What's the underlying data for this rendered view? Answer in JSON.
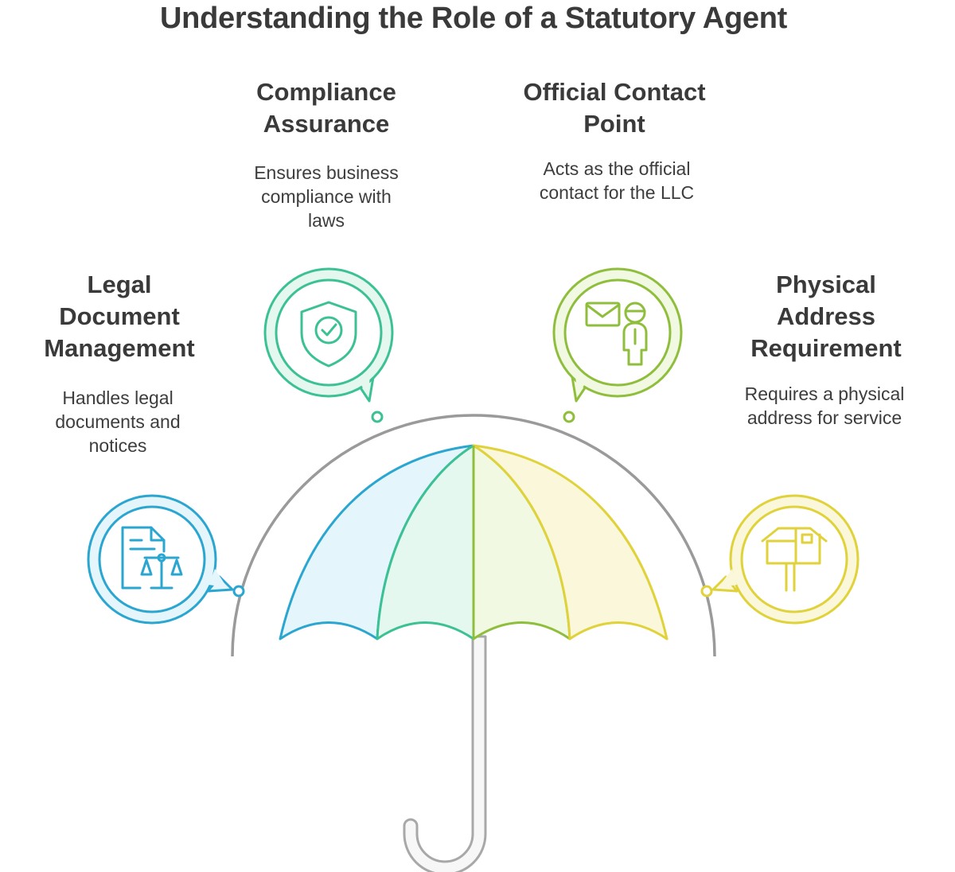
{
  "title": "Understanding the Role of a Statutory Agent",
  "features": [
    {
      "id": "legal-document-management",
      "title_lines": [
        "Legal",
        "Document",
        "Management"
      ],
      "description_lines": [
        "Handles legal",
        "documents and",
        "notices"
      ],
      "icon": "legal-document-scales-icon",
      "color": "#2aa6d0"
    },
    {
      "id": "compliance-assurance",
      "title_lines": [
        "Compliance",
        "Assurance"
      ],
      "description_lines": [
        "Ensures business",
        "compliance with",
        "laws"
      ],
      "icon": "shield-check-icon",
      "color": "#3cc194"
    },
    {
      "id": "official-contact-point",
      "title_lines": [
        "Official Contact",
        "Point"
      ],
      "description_lines": [
        "Acts as the official",
        "contact for the LLC"
      ],
      "icon": "mail-person-icon",
      "color": "#8fbe3c"
    },
    {
      "id": "physical-address-requirement",
      "title_lines": [
        "Physical",
        "Address",
        "Requirement"
      ],
      "description_lines": [
        "Requires a physical",
        "address for service"
      ],
      "icon": "mailbox-icon",
      "color": "#e0d23a"
    }
  ],
  "umbrella_colors": {
    "panel_1": "#2aa6d0",
    "panel_2": "#3cc194",
    "panel_3": "#8fbe3c",
    "panel_4": "#e0d23a",
    "handle": "#aaaaaa",
    "arc": "#9a9a9a"
  }
}
